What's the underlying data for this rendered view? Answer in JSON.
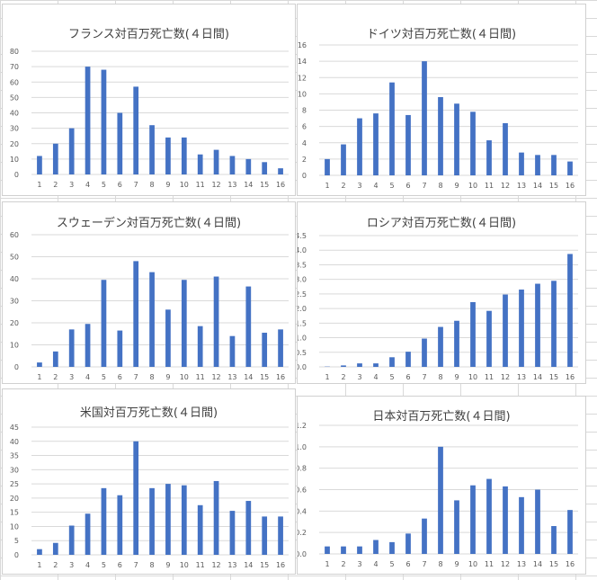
{
  "colors": {
    "bar": "#4472C4",
    "grid": "#d9d9d9",
    "axis_text": "#595959",
    "title": "#404040"
  },
  "chart_data": [
    {
      "type": "bar",
      "title": "フランス対百万死亡数(４日間)",
      "categories": [
        "1",
        "2",
        "3",
        "4",
        "5",
        "6",
        "7",
        "8",
        "9",
        "10",
        "11",
        "12",
        "13",
        "14",
        "15",
        "16"
      ],
      "values": [
        12,
        20,
        30,
        70,
        68,
        40,
        57,
        32,
        24,
        24,
        13,
        16,
        12,
        10,
        8,
        4
      ],
      "ylim": [
        0,
        80
      ],
      "yticks": [
        "0",
        "10",
        "20",
        "30",
        "40",
        "50",
        "60",
        "70",
        "80"
      ],
      "ytick_values": [
        0,
        10,
        20,
        30,
        40,
        50,
        60,
        70,
        80
      ],
      "grid": true
    },
    {
      "type": "bar",
      "title": "ドイツ対百万死亡数(４日間)",
      "categories": [
        "1",
        "2",
        "3",
        "4",
        "5",
        "6",
        "7",
        "8",
        "9",
        "10",
        "11",
        "12",
        "13",
        "14",
        "15",
        "16"
      ],
      "values": [
        2,
        3.8,
        7,
        7.6,
        11.4,
        7.4,
        14,
        9.6,
        8.8,
        7.8,
        4.3,
        6.4,
        2.8,
        2.5,
        2.5,
        1.7
      ],
      "ylim": [
        0,
        16
      ],
      "yticks": [
        "0",
        "2",
        "4",
        "6",
        "8",
        "10",
        "12",
        "14",
        "16"
      ],
      "ytick_values": [
        0,
        2,
        4,
        6,
        8,
        10,
        12,
        14,
        16
      ],
      "grid": true
    },
    {
      "type": "bar",
      "title": "スウェーデン対百万死亡数(４日間)",
      "categories": [
        "1",
        "2",
        "3",
        "4",
        "5",
        "6",
        "7",
        "8",
        "9",
        "10",
        "11",
        "12",
        "13",
        "14",
        "15",
        "16"
      ],
      "values": [
        2,
        7,
        17,
        19.5,
        39.5,
        16.5,
        48,
        43,
        26,
        39.5,
        18.5,
        41,
        14,
        36.5,
        15.5,
        17
      ],
      "ylim": [
        0,
        60
      ],
      "yticks": [
        "0",
        "10",
        "20",
        "30",
        "40",
        "50",
        "60"
      ],
      "ytick_values": [
        0,
        10,
        20,
        30,
        40,
        50,
        60
      ],
      "grid": true
    },
    {
      "type": "bar",
      "title": "ロシア対百万死亡数(４日間)",
      "categories": [
        "1",
        "2",
        "3",
        "4",
        "5",
        "6",
        "7",
        "8",
        "9",
        "10",
        "11",
        "12",
        "13",
        "14",
        "15",
        "16"
      ],
      "values": [
        0.01,
        0.05,
        0.12,
        0.12,
        0.33,
        0.52,
        0.97,
        1.37,
        1.58,
        2.22,
        1.92,
        2.48,
        2.65,
        2.85,
        2.95,
        3.87
      ],
      "ylim": [
        0,
        4.5
      ],
      "yticks": [
        "0.0",
        "0.5",
        "1.0",
        "1.5",
        "2.0",
        "2.5",
        "3.0",
        "3.5",
        "4.0",
        "4.5"
      ],
      "ytick_values": [
        0,
        0.5,
        1,
        1.5,
        2,
        2.5,
        3,
        3.5,
        4,
        4.5
      ],
      "grid": true
    },
    {
      "type": "bar",
      "title": "米国対百万死亡数(４日間)",
      "categories": [
        "1",
        "2",
        "3",
        "4",
        "5",
        "6",
        "7",
        "8",
        "9",
        "10",
        "11",
        "12",
        "13",
        "14",
        "15",
        "16"
      ],
      "values": [
        2,
        4.2,
        10.3,
        14.5,
        23.5,
        21,
        40,
        23.5,
        25,
        24.5,
        17.5,
        26,
        15.5,
        19,
        13.5,
        13.5
      ],
      "ylim": [
        0,
        45
      ],
      "yticks": [
        "0",
        "5",
        "10",
        "15",
        "20",
        "25",
        "30",
        "35",
        "40",
        "45"
      ],
      "ytick_values": [
        0,
        5,
        10,
        15,
        20,
        25,
        30,
        35,
        40,
        45
      ],
      "grid": true
    },
    {
      "type": "bar",
      "title": "日本対百万死亡数(４日間)",
      "categories": [
        "1",
        "2",
        "3",
        "4",
        "5",
        "6",
        "7",
        "8",
        "9",
        "10",
        "11",
        "12",
        "13",
        "14",
        "15",
        "16"
      ],
      "values": [
        0.07,
        0.07,
        0.07,
        0.13,
        0.11,
        0.19,
        0.33,
        1.0,
        0.5,
        0.64,
        0.7,
        0.63,
        0.53,
        0.6,
        0.26,
        0.41
      ],
      "ylim": [
        0,
        1.2
      ],
      "yticks": [
        "0.0",
        "0.2",
        "0.4",
        "0.6",
        "0.8",
        "1.0",
        "1.2"
      ],
      "ytick_values": [
        0,
        0.2,
        0.4,
        0.6,
        0.8,
        1.0,
        1.2
      ],
      "grid": true
    }
  ]
}
